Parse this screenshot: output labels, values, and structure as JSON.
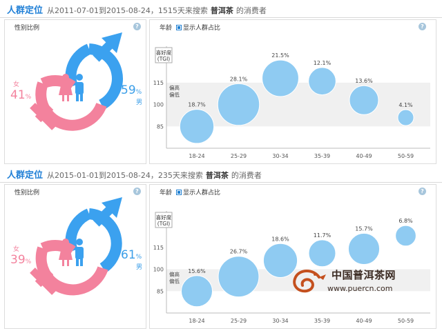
{
  "sections": [
    {
      "title": "人群定位",
      "subtitle_prefix": "从2011-07-01到2015-08-24，1515天来搜索",
      "keyword": "普洱茶",
      "subtitle_suffix": "的消费者",
      "gender_panel_title": "性别比例",
      "female": {
        "value": "41",
        "unit": "%",
        "label": "女"
      },
      "male": {
        "value": "59",
        "unit": "%",
        "label": "男"
      },
      "age_panel_title": "年龄",
      "show_ratio_label": "显示人群占比",
      "help_glyph": "?"
    },
    {
      "title": "人群定位",
      "subtitle_prefix": "从2015-01-01到2015-08-24，235天来搜索",
      "keyword": "普洱茶",
      "subtitle_suffix": "的消费者",
      "gender_panel_title": "性别比例",
      "female": {
        "value": "39",
        "unit": "%",
        "label": "女"
      },
      "male": {
        "value": "61",
        "unit": "%",
        "label": "男"
      },
      "age_panel_title": "年龄",
      "show_ratio_label": "显示人群占比",
      "help_glyph": "?"
    }
  ],
  "chart_data": [
    {
      "type": "scatter",
      "ylabel": "喜好度(TGI)",
      "band_label_high": "偏高",
      "band_label_low": "偏低",
      "categories": [
        "18-24",
        "25-29",
        "30-34",
        "35-39",
        "40-49",
        "50-59"
      ],
      "yticks": [
        85,
        100,
        115
      ],
      "ylim": [
        70,
        140
      ],
      "band": [
        85,
        115
      ],
      "tgi": [
        85,
        100,
        118,
        116,
        103,
        91
      ],
      "share_labels": [
        "18.7%",
        "28.1%",
        "21.5%",
        "12.1%",
        "13.6%",
        "4.1%"
      ],
      "share": [
        18.7,
        28.1,
        21.5,
        12.1,
        13.6,
        4.1
      ],
      "color": "#8fcbf2"
    },
    {
      "type": "scatter",
      "ylabel": "喜好度(TGI)",
      "band_label_high": "偏高",
      "band_label_low": "偏低",
      "categories": [
        "18-24",
        "25-29",
        "30-34",
        "35-39",
        "40-49",
        "50-59"
      ],
      "yticks": [
        85,
        100,
        115
      ],
      "ylim": [
        70,
        140
      ],
      "band": [
        85,
        100
      ],
      "tgi": [
        85,
        95,
        106,
        111,
        114,
        123
      ],
      "share_labels": [
        "15.6%",
        "26.7%",
        "18.6%",
        "11.7%",
        "15.7%",
        "6.8%"
      ],
      "share": [
        15.6,
        26.7,
        18.6,
        11.7,
        15.7,
        6.8
      ],
      "color": "#8fcbf2"
    }
  ],
  "watermark": {
    "name": "中国普洱茶网",
    "url": "www.puercn.com"
  }
}
